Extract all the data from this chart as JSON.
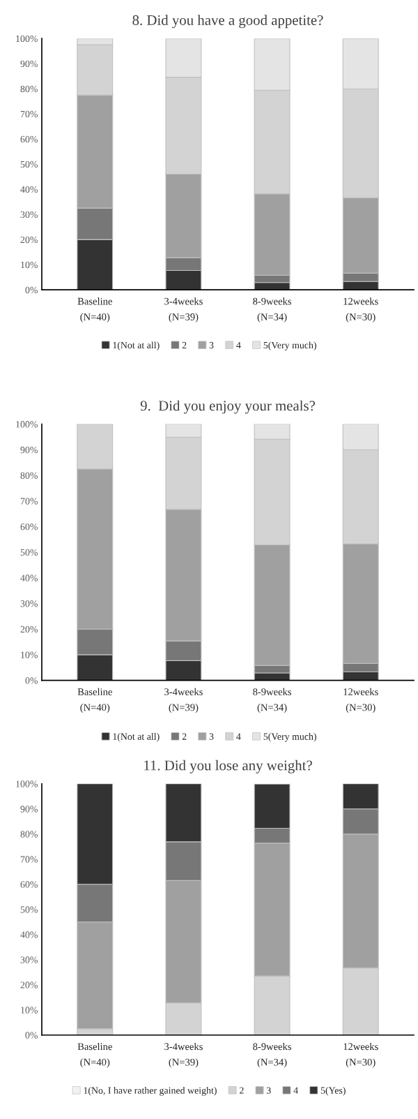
{
  "chart_data": [
    {
      "type": "bar",
      "title": "8. Did you have a good appetite?",
      "stacked": true,
      "legend": "bottom",
      "grid": false,
      "categories": [
        "Baseline\n(N=40)",
        "3-4weeks\n(N=39)",
        "8-9weeks\n(N=34)",
        "12weeks\n(N=30)"
      ],
      "ylim": [
        0,
        100
      ],
      "yticks": [
        {
          "value": 0,
          "label": "0%"
        },
        {
          "value": 10,
          "label": "10%"
        },
        {
          "value": 20,
          "label": "20%"
        },
        {
          "value": 30,
          "label": "30%"
        },
        {
          "value": 40,
          "label": "40%"
        },
        {
          "value": 50,
          "label": "50%"
        },
        {
          "value": 60,
          "label": "60%"
        },
        {
          "value": 70,
          "label": "70%"
        },
        {
          "value": 80,
          "label": "80%"
        },
        {
          "value": 90,
          "label": "90%"
        },
        {
          "value": 100,
          "label": "100%"
        }
      ],
      "series": [
        {
          "name": "1(Not at all)",
          "color": "#333333",
          "values": [
            20,
            7.7,
            2.9,
            3.3
          ]
        },
        {
          "name": "2",
          "color": "#777777",
          "values": [
            12.5,
            5.1,
            2.9,
            3.3
          ]
        },
        {
          "name": "3",
          "color": "#a0a0a0",
          "values": [
            45,
            33.3,
            32.4,
            30
          ]
        },
        {
          "name": "4",
          "color": "#d3d3d3",
          "values": [
            20,
            38.5,
            41.2,
            43.3
          ]
        },
        {
          "name": "5(Very much)",
          "color": "#e4e4e4",
          "values": [
            2.5,
            15.4,
            20.6,
            20
          ]
        }
      ]
    },
    {
      "type": "bar",
      "title": "9.  Did you enjoy your meals?",
      "stacked": true,
      "legend": "bottom",
      "grid": false,
      "categories": [
        "Baseline\n(N=40)",
        "3-4weeks\n(N=39)",
        "8-9weeks\n(N=34)",
        "12weeks\n(N=30)"
      ],
      "ylim": [
        0,
        100
      ],
      "yticks": [
        {
          "value": 0,
          "label": "0%"
        },
        {
          "value": 10,
          "label": "10%"
        },
        {
          "value": 20,
          "label": "20%"
        },
        {
          "value": 30,
          "label": "30%"
        },
        {
          "value": 40,
          "label": "40%"
        },
        {
          "value": 50,
          "label": "50%"
        },
        {
          "value": 60,
          "label": "60%"
        },
        {
          "value": 70,
          "label": "70%"
        },
        {
          "value": 80,
          "label": "80%"
        },
        {
          "value": 90,
          "label": "90%"
        },
        {
          "value": 100,
          "label": "100%"
        }
      ],
      "series": [
        {
          "name": "1(Not at all)",
          "color": "#333333",
          "values": [
            10,
            7.7,
            2.9,
            3.3
          ]
        },
        {
          "name": "2",
          "color": "#777777",
          "values": [
            10,
            7.7,
            2.9,
            3.3
          ]
        },
        {
          "name": "3",
          "color": "#a0a0a0",
          "values": [
            62.5,
            51.3,
            47.1,
            46.7
          ]
        },
        {
          "name": "4",
          "color": "#d3d3d3",
          "values": [
            17.5,
            28.2,
            41.2,
            36.7
          ]
        },
        {
          "name": "5(Very much)",
          "color": "#e4e4e4",
          "values": [
            0,
            5.1,
            5.9,
            10
          ]
        }
      ]
    },
    {
      "type": "bar",
      "title": "11. Did you lose any weight?",
      "stacked": true,
      "legend": "bottom",
      "grid": false,
      "categories": [
        "Baseline\n(N=40)",
        "3-4weeks\n(N=39)",
        "8-9weeks\n(N=34)",
        "12weeks\n(N=30)"
      ],
      "ylim": [
        0,
        100
      ],
      "yticks": [
        {
          "value": 0,
          "label": "0%"
        },
        {
          "value": 10,
          "label": "10%"
        },
        {
          "value": 20,
          "label": "20%"
        },
        {
          "value": 30,
          "label": "30%"
        },
        {
          "value": 40,
          "label": "40%"
        },
        {
          "value": 50,
          "label": "50%"
        },
        {
          "value": 60,
          "label": "60%"
        },
        {
          "value": 70,
          "label": "70%"
        },
        {
          "value": 80,
          "label": "80%"
        },
        {
          "value": 90,
          "label": "90%"
        },
        {
          "value": 100,
          "label": "100%"
        }
      ],
      "series": [
        {
          "name": "1(No, I have rather gained weight)",
          "color": "#f2f2f2",
          "values": [
            0,
            0,
            0,
            0
          ]
        },
        {
          "name": "2",
          "color": "#d3d3d3",
          "values": [
            2.5,
            12.8,
            23.5,
            26.7
          ]
        },
        {
          "name": "3",
          "color": "#a0a0a0",
          "values": [
            42.5,
            48.7,
            52.9,
            53.3
          ]
        },
        {
          "name": "4",
          "color": "#777777",
          "values": [
            15,
            15.4,
            5.9,
            10
          ]
        },
        {
          "name": "5(Yes)",
          "color": "#333333",
          "values": [
            40,
            23.1,
            17.6,
            10
          ]
        }
      ]
    }
  ]
}
